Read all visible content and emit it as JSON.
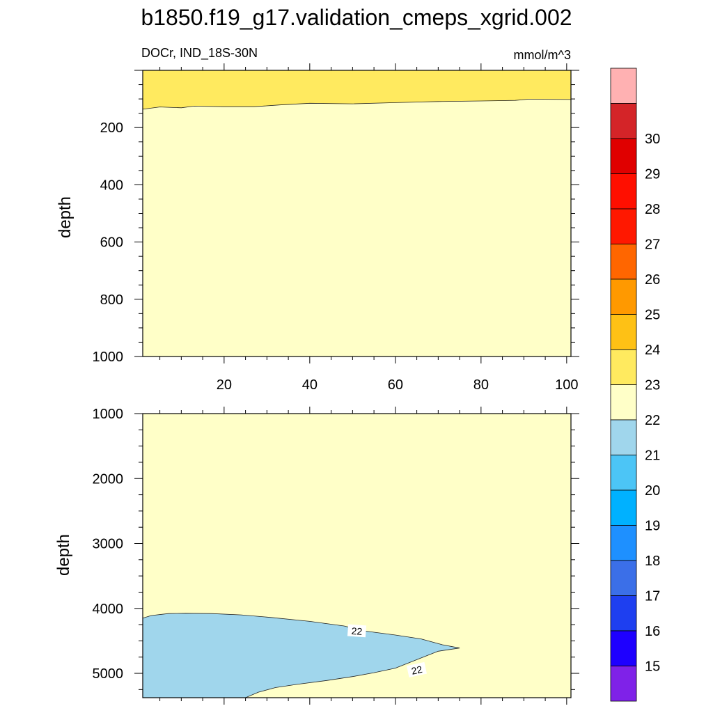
{
  "title": "b1850.f19_g17.validation_cmeps_xgrid.002",
  "subtitle_left": "DOCr, IND_18S-30N",
  "subtitle_right": "mmol/m^3",
  "chart_data": [
    {
      "type": "heatmap",
      "panel": "upper",
      "ylabel": "depth",
      "xlabel": "",
      "xlim": [
        1,
        101
      ],
      "ylim": [
        1000,
        0
      ],
      "xticks": [
        20,
        40,
        60,
        80,
        100
      ],
      "yticks": [
        200,
        400,
        600,
        800,
        1000
      ],
      "regions": [
        {
          "range": "23-24",
          "color": "#ffea5f",
          "boundary_depth": [
            {
              "x": 1,
              "depth": 136
            },
            {
              "x": 5,
              "depth": 128
            },
            {
              "x": 10,
              "depth": 131
            },
            {
              "x": 13,
              "depth": 125
            },
            {
              "x": 20,
              "depth": 127
            },
            {
              "x": 27,
              "depth": 127
            },
            {
              "x": 33,
              "depth": 121
            },
            {
              "x": 40,
              "depth": 115
            },
            {
              "x": 50,
              "depth": 117
            },
            {
              "x": 60,
              "depth": 113
            },
            {
              "x": 70,
              "depth": 109
            },
            {
              "x": 80,
              "depth": 107
            },
            {
              "x": 88,
              "depth": 105
            },
            {
              "x": 91,
              "depth": 101
            },
            {
              "x": 101,
              "depth": 102
            }
          ]
        },
        {
          "range": "22-23",
          "color": "#ffffc8"
        }
      ]
    },
    {
      "type": "heatmap",
      "panel": "lower",
      "ylabel": "depth",
      "xlabel": "",
      "xlim": [
        1,
        101
      ],
      "ylim": [
        5375,
        1000
      ],
      "xticks": [
        20,
        40,
        60,
        80,
        100
      ],
      "yticks": [
        1000,
        2000,
        3000,
        4000,
        5000
      ],
      "regions": [
        {
          "range": "22-23",
          "color": "#ffffc8"
        },
        {
          "range": "21-22",
          "color": "#a0d6ec",
          "outline": [
            {
              "x": 1,
              "depth": 4150
            },
            {
              "x": 3,
              "depth": 4110
            },
            {
              "x": 7,
              "depth": 4080
            },
            {
              "x": 11,
              "depth": 4075
            },
            {
              "x": 17,
              "depth": 4080
            },
            {
              "x": 24,
              "depth": 4100
            },
            {
              "x": 31,
              "depth": 4140
            },
            {
              "x": 40,
              "depth": 4200
            },
            {
              "x": 48,
              "depth": 4270
            },
            {
              "x": 53,
              "depth": 4350
            },
            {
              "x": 60,
              "depth": 4410
            },
            {
              "x": 66,
              "depth": 4470
            },
            {
              "x": 71,
              "depth": 4560
            },
            {
              "x": 75,
              "depth": 4610
            },
            {
              "x": 70,
              "depth": 4660
            },
            {
              "x": 65,
              "depth": 4790
            },
            {
              "x": 60,
              "depth": 4920
            },
            {
              "x": 55,
              "depth": 4990
            },
            {
              "x": 50,
              "depth": 5050
            },
            {
              "x": 44,
              "depth": 5110
            },
            {
              "x": 37,
              "depth": 5170
            },
            {
              "x": 32,
              "depth": 5220
            },
            {
              "x": 28,
              "depth": 5290
            },
            {
              "x": 25,
              "depth": 5375
            },
            {
              "x": 1,
              "depth": 5375
            }
          ]
        }
      ],
      "contour_labels": [
        {
          "text": "22",
          "x": 51,
          "depth": 4350
        },
        {
          "text": "22",
          "x": 65,
          "depth": 4950
        }
      ]
    }
  ],
  "colorbar": {
    "labels": [
      "15",
      "16",
      "17",
      "18",
      "19",
      "20",
      "21",
      "22",
      "23",
      "24",
      "25",
      "26",
      "27",
      "28",
      "29",
      "30"
    ],
    "colors": [
      "#ffb1b2",
      "#d42428",
      "#e00000",
      "#ff0f00",
      "#ff1800",
      "#ff6600",
      "#ff9900",
      "#fec115",
      "#ffea5f",
      "#ffffc8",
      "#a0d6ec",
      "#4cc5f6",
      "#00b1ff",
      "#1e90ff",
      "#3b6fe8",
      "#1e3ff0",
      "#1e00ff",
      "#7f22e8"
    ]
  }
}
